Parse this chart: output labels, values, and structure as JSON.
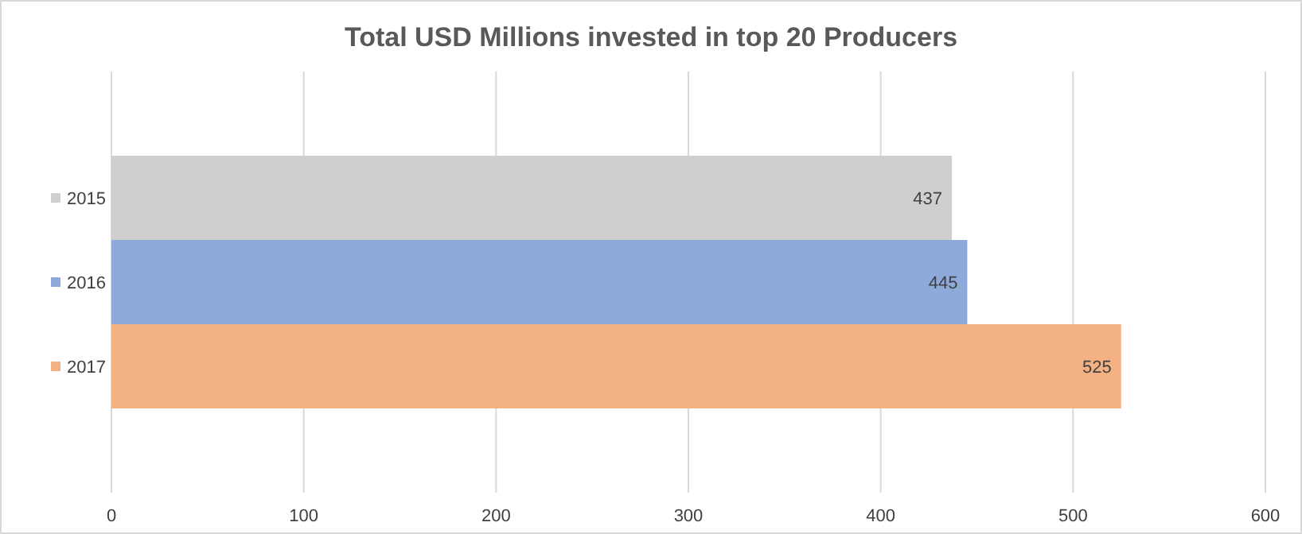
{
  "chart_data": {
    "type": "bar",
    "orientation": "horizontal",
    "title": "Total USD Millions invested in top 20 Producers",
    "categories": [
      "2015",
      "2016",
      "2017"
    ],
    "values": [
      437,
      445,
      525
    ],
    "colors": [
      "#d0cece",
      "#8eaadb",
      "#f4b183"
    ],
    "xlim": [
      0,
      600
    ],
    "xticks": [
      0,
      100,
      200,
      300,
      400,
      500,
      600
    ],
    "grid": "x",
    "data_labels": true
  }
}
